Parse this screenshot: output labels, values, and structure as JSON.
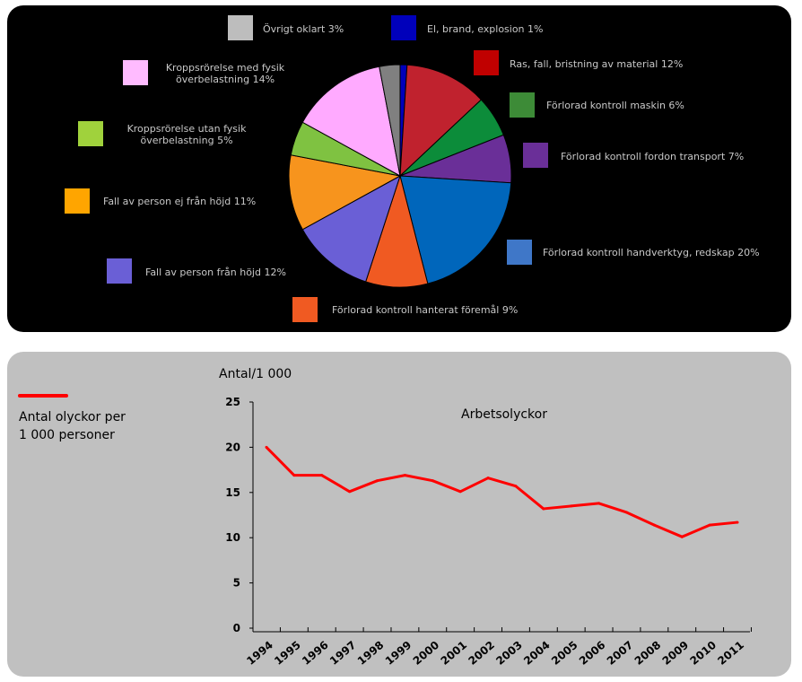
{
  "chart_data": [
    {
      "type": "pie",
      "slices": [
        {
          "label": "El, brand, explosion 1%",
          "value": 1,
          "color": "#0000bb"
        },
        {
          "label": "Ras, fall, bristning av material 12%",
          "value": 12,
          "color": "#c0222e"
        },
        {
          "label": "Förlorad kontroll maskin 6%",
          "value": 6,
          "color": "#0c8c3a"
        },
        {
          "label": "Förlorad kontroll fordon transport 7%",
          "value": 7,
          "color": "#6a2f98"
        },
        {
          "label": "Förlorad kontroll handverktyg, redskap 20%",
          "value": 20,
          "color": "#0066bb"
        },
        {
          "label": "Förlorad kontroll hanterat föremål 9%",
          "value": 9,
          "color": "#f05a22"
        },
        {
          "label": "Fall av person från höjd 12%",
          "value": 12,
          "color": "#6a5fd6"
        },
        {
          "label": "Fall av person ej från höjd 11%",
          "value": 11,
          "color": "#f7941d"
        },
        {
          "label": "Kroppsrörelse utan fysik överbelastning 5%",
          "value": 5,
          "color": "#7fc241"
        },
        {
          "label": "Kroppsrörelse med fysik överbelastning 14%",
          "value": 14,
          "color": "#ffaaff"
        },
        {
          "label": "Övrigt oklart 3%",
          "value": 3,
          "color": "#808080"
        }
      ],
      "legend": [
        {
          "lines": [
            "Övrigt oklart 3%"
          ],
          "color": "#bdbdbd"
        },
        {
          "lines": [
            "El, brand, explosion 1%"
          ],
          "color": "#0000bb"
        },
        {
          "lines": [
            "Ras, fall, bristning av material 12%"
          ],
          "color": "#c00000"
        },
        {
          "lines": [
            "Förlorad kontroll maskin 6%"
          ],
          "color": "#3d8b37"
        },
        {
          "lines": [
            "Förlorad kontroll fordon transport 7%"
          ],
          "color": "#6a2f98"
        },
        {
          "lines": [
            "Förlorad kontroll handverktyg, redskap 20%"
          ],
          "color": "#3f77c8"
        },
        {
          "lines": [
            "Förlorad kontroll hanterat föremål 9%"
          ],
          "color": "#f05a22"
        },
        {
          "lines": [
            "Fall av person från höjd 12%"
          ],
          "color": "#6a5fd6"
        },
        {
          "lines": [
            "Fall av person ej från höjd 11%"
          ],
          "color": "#ffa500"
        },
        {
          "lines": [
            "Kroppsrörelse utan fysik",
            "överbelastning 5%"
          ],
          "color": "#a0d23c"
        },
        {
          "lines": [
            "Kroppsrörelse med fysik",
            "överbelastning 14%"
          ],
          "color": "#ffbbff"
        }
      ]
    },
    {
      "type": "line",
      "title": "Arbetsolyckor",
      "ylabel": "Antal/1 000",
      "legend_lines": [
        "Antal olyckor per",
        "1 000 personer"
      ],
      "line_color": "#ff0000",
      "categories": [
        "1994",
        "1995",
        "1996",
        "1997",
        "1998",
        "1999",
        "2000",
        "2001",
        "2002",
        "2003",
        "2004",
        "2005",
        "2006",
        "2007",
        "2008",
        "2009",
        "2010",
        "2011"
      ],
      "series": [
        {
          "values": [
            20,
            16.9,
            16.9,
            15.1,
            16.3,
            16.9,
            16.3,
            15.1,
            16.6,
            15.7,
            13.2,
            13.5,
            13.8,
            12.8,
            11.4,
            10.1,
            11.4,
            11.7
          ]
        }
      ],
      "yticks": [
        "0",
        "5",
        "10",
        "15",
        "20",
        "25"
      ],
      "ylim": [
        0,
        25
      ]
    }
  ]
}
